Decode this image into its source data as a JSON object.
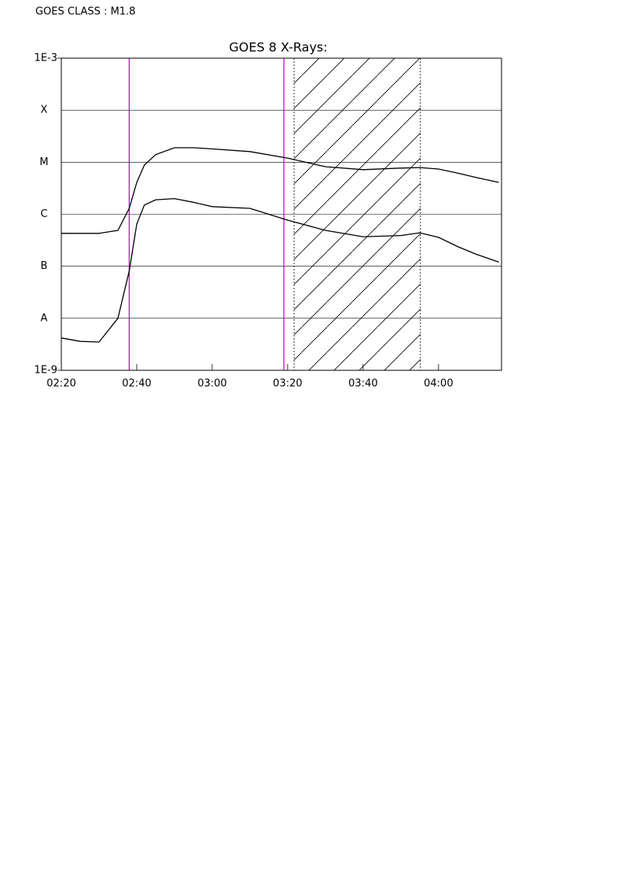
{
  "chart_data": {
    "type": "line",
    "annotation": "GOES CLASS : M1.8",
    "title": "GOES 8 X-Rays:",
    "x": [
      140,
      145,
      150,
      155,
      158,
      160,
      162,
      165,
      170,
      175,
      180,
      190,
      200,
      210,
      220,
      230,
      235,
      240,
      245,
      250,
      256
    ],
    "series": [
      {
        "color": "#000000",
        "values": [
          4.3e-07,
          4.3e-07,
          4.3e-07,
          4.9e-07,
          1.3e-06,
          4.1e-06,
          8.8e-06,
          1.4e-05,
          1.9e-05,
          1.9e-05,
          1.8e-05,
          1.6e-05,
          1.2e-05,
          8.2e-06,
          7.2e-06,
          7.7e-06,
          7.9e-06,
          7.4e-06,
          6.2e-06,
          5.1e-06,
          4.1e-06
        ]
      },
      {
        "color": "#000000",
        "values": [
          4.2e-09,
          3.6e-09,
          3.5e-09,
          1e-08,
          8.1e-08,
          6.5e-07,
          1.5e-06,
          1.9e-06,
          2e-06,
          1.7e-06,
          1.4e-06,
          1.3e-06,
          7.7e-07,
          4.9e-07,
          3.7e-07,
          3.9e-07,
          4.4e-07,
          3.6e-07,
          2.4e-07,
          1.7e-07,
          1.2e-07
        ]
      }
    ],
    "xlim": [
      140,
      256.7
    ],
    "xticks": [
      {
        "value": 140,
        "label": "02:20"
      },
      {
        "value": 160,
        "label": "02:40"
      },
      {
        "value": 180,
        "label": "03:00"
      },
      {
        "value": 200,
        "label": "03:20"
      },
      {
        "value": 220,
        "label": "03:40"
      },
      {
        "value": 240,
        "label": "04:00"
      }
    ],
    "ylim": [
      1e-09,
      0.001
    ],
    "yticks": [
      {
        "value": 1e-09,
        "label": "1E-9"
      },
      {
        "value": 1e-08,
        "label": "A"
      },
      {
        "value": 1e-07,
        "label": "B"
      },
      {
        "value": 1e-06,
        "label": "C"
      },
      {
        "value": 1e-05,
        "label": "M"
      },
      {
        "value": 0.0001,
        "label": "X"
      },
      {
        "value": 0.001,
        "label": "1E-3"
      }
    ],
    "log_y": true,
    "grid": true,
    "markers": [
      {
        "x": 158,
        "color": "#c000c0"
      },
      {
        "x": 199,
        "color": "#c000c0"
      }
    ],
    "shaded": [
      201.7,
      235.2
    ]
  }
}
